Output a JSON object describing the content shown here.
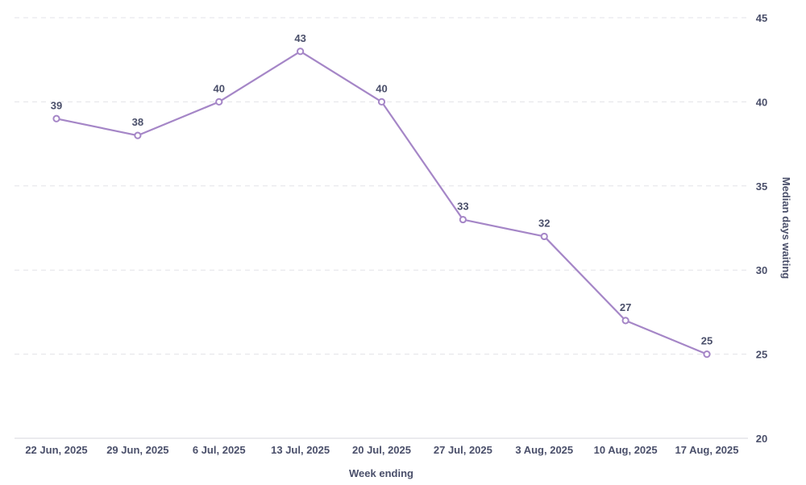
{
  "chart_data": {
    "type": "line",
    "xlabel": "Week ending",
    "ylabel": "Median days waiting",
    "ylim": [
      20,
      45
    ],
    "y_ticks": [
      20,
      25,
      30,
      35,
      40,
      45
    ],
    "y_axis_position": "right",
    "grid": true,
    "legend": "none",
    "categories": [
      "22 Jun, 2025",
      "29 Jun, 2025",
      "6 Jul, 2025",
      "13 Jul, 2025",
      "20 Jul, 2025",
      "27 Jul, 2025",
      "3 Aug, 2025",
      "10 Aug, 2025",
      "17 Aug, 2025"
    ],
    "series": [
      {
        "values": [
          39,
          38,
          40,
          43,
          40,
          33,
          32,
          27,
          25
        ],
        "color": "#a586c7"
      }
    ]
  }
}
